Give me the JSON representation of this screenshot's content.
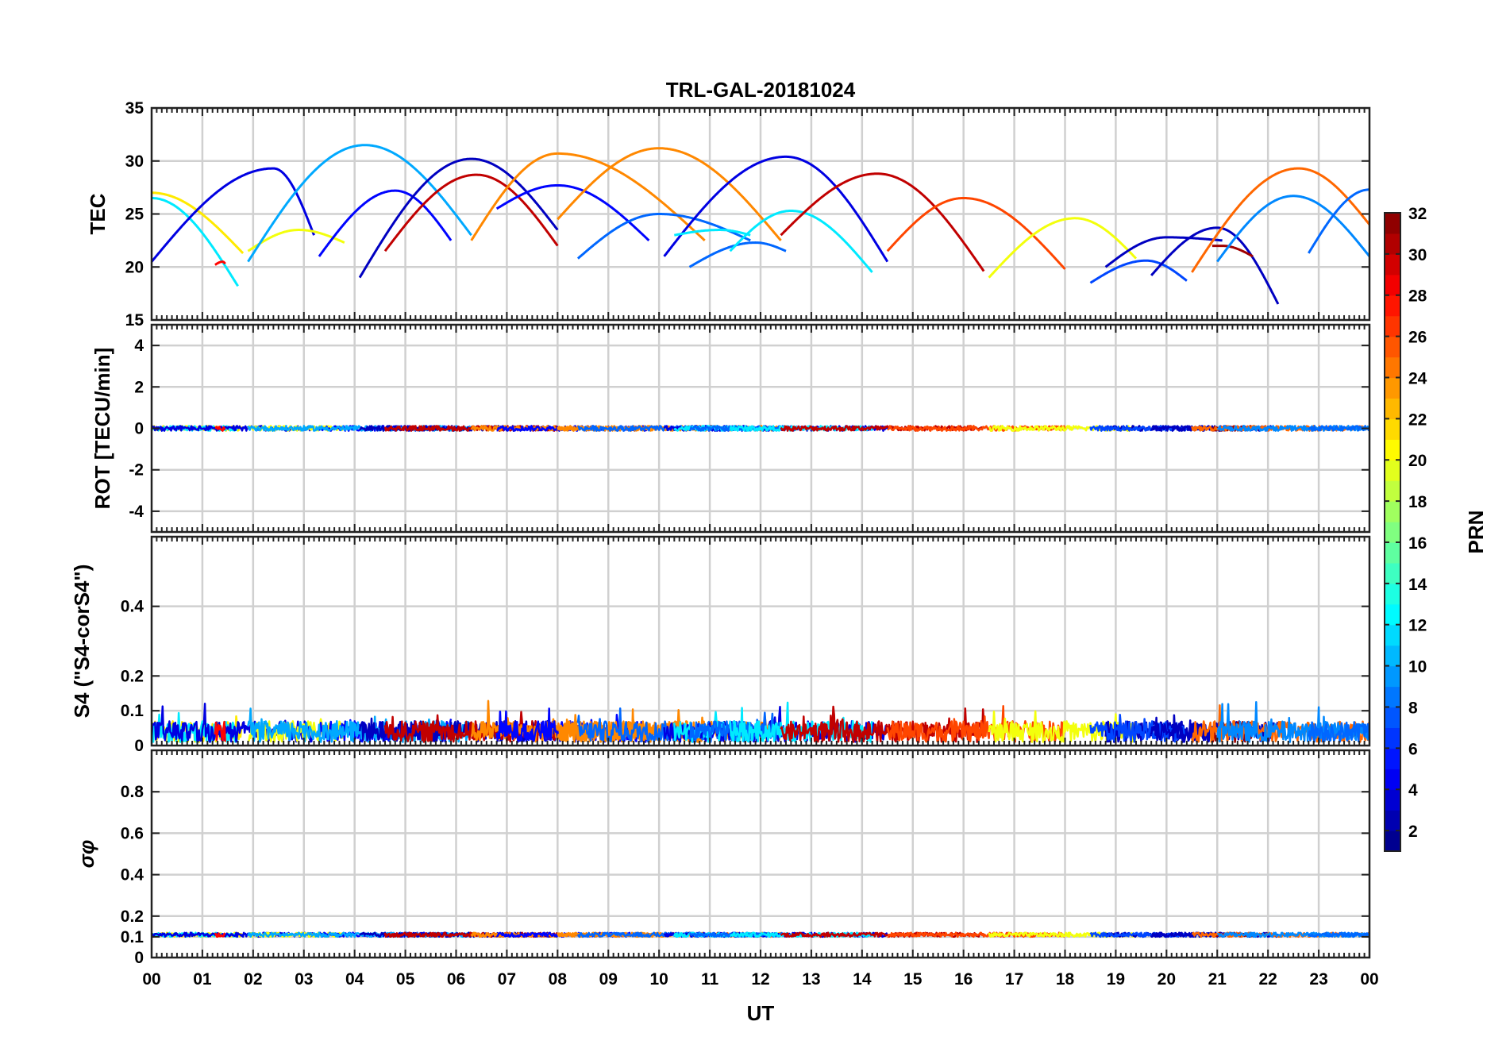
{
  "chart_data": {
    "type": "line",
    "title": "TRL-GAL-20181024",
    "xlabel": "UT",
    "x_ticks": [
      "00",
      "01",
      "02",
      "03",
      "04",
      "05",
      "06",
      "07",
      "08",
      "09",
      "10",
      "11",
      "12",
      "13",
      "14",
      "15",
      "16",
      "17",
      "18",
      "19",
      "20",
      "21",
      "22",
      "23",
      "00"
    ],
    "xlim": [
      0,
      24
    ],
    "colorbar": {
      "label": "PRN",
      "range": [
        1,
        32
      ],
      "ticks": [
        "2",
        "4",
        "6",
        "8",
        "10",
        "12",
        "14",
        "16",
        "18",
        "20",
        "22",
        "24",
        "26",
        "28",
        "30",
        "32"
      ]
    },
    "panels": [
      {
        "id": "tec",
        "ylabel": "TEC",
        "ylim": [
          15,
          35
        ],
        "y_ticks": [
          "15",
          "20",
          "25",
          "30",
          "35"
        ],
        "arcs": [
          {
            "prn": 21,
            "start": 0.0,
            "end": 1.8,
            "startv": 27.0,
            "peak": 27.0,
            "peakt": 0.0,
            "endv": 21.3
          },
          {
            "prn": 12,
            "start": 0.0,
            "end": 1.7,
            "startv": 26.5,
            "peak": 26.5,
            "peakt": 0.0,
            "endv": 18.2
          },
          {
            "prn": 4,
            "start": 0.0,
            "end": 3.2,
            "startv": 20.5,
            "peak": 29.3,
            "peakt": 2.4,
            "endv": 23.0
          },
          {
            "prn": 28,
            "start": 1.25,
            "end": 1.45,
            "startv": 20.2,
            "peak": 20.5,
            "peakt": 1.4,
            "endv": 20.3
          },
          {
            "prn": 20,
            "start": 1.9,
            "end": 3.8,
            "startv": 21.5,
            "peak": 23.5,
            "peakt": 2.9,
            "endv": 22.3
          },
          {
            "prn": 5,
            "start": 3.3,
            "end": 5.9,
            "startv": 21.0,
            "peak": 27.2,
            "peakt": 4.8,
            "endv": 22.5
          },
          {
            "prn": 10,
            "start": 1.9,
            "end": 6.3,
            "startv": 20.5,
            "peak": 31.5,
            "peakt": 4.2,
            "endv": 23.0
          },
          {
            "prn": 3,
            "start": 4.1,
            "end": 8.0,
            "startv": 19.0,
            "peak": 30.2,
            "peakt": 6.3,
            "endv": 23.5
          },
          {
            "prn": 30,
            "start": 4.6,
            "end": 8.0,
            "startv": 21.5,
            "peak": 28.7,
            "peakt": 6.4,
            "endv": 22.0
          },
          {
            "prn": 24,
            "start": 6.3,
            "end": 8.0,
            "startv": 22.5,
            "peak": 30.7,
            "peakt": 8.0,
            "endv": 30.7
          },
          {
            "prn": 5,
            "start": 6.8,
            "end": 9.8,
            "startv": 25.5,
            "peak": 27.7,
            "peakt": 8.0,
            "endv": 22.5
          },
          {
            "prn": 24,
            "start": 8.0,
            "end": 10.9,
            "startv": 30.7,
            "peak": 30.7,
            "peakt": 8.0,
            "endv": 22.5
          },
          {
            "prn": 24,
            "start": 8.0,
            "end": 12.4,
            "startv": 24.5,
            "peak": 31.2,
            "peakt": 10.0,
            "endv": 22.5
          },
          {
            "prn": 8,
            "start": 8.4,
            "end": 11.8,
            "startv": 20.8,
            "peak": 25.0,
            "peakt": 10.0,
            "endv": 22.5
          },
          {
            "prn": 4,
            "start": 10.1,
            "end": 14.5,
            "startv": 21.0,
            "peak": 30.4,
            "peakt": 12.5,
            "endv": 20.5
          },
          {
            "prn": 12,
            "start": 10.3,
            "end": 11.8,
            "startv": 23.0,
            "peak": 23.5,
            "peakt": 11.2,
            "endv": 23.0
          },
          {
            "prn": 8,
            "start": 10.6,
            "end": 12.5,
            "startv": 20.0,
            "peak": 22.3,
            "peakt": 11.9,
            "endv": 21.5
          },
          {
            "prn": 12,
            "start": 11.4,
            "end": 14.2,
            "startv": 21.5,
            "peak": 25.3,
            "peakt": 12.6,
            "endv": 19.5
          },
          {
            "prn": 30,
            "start": 12.4,
            "end": 16.4,
            "startv": 23.0,
            "peak": 28.8,
            "peakt": 14.3,
            "endv": 19.6
          },
          {
            "prn": 26,
            "start": 14.5,
            "end": 18.0,
            "startv": 21.5,
            "peak": 26.5,
            "peakt": 16.0,
            "endv": 19.8
          },
          {
            "prn": 20,
            "start": 16.5,
            "end": 19.4,
            "startv": 19.0,
            "peak": 24.6,
            "peakt": 18.2,
            "endv": 20.8
          },
          {
            "prn": 3,
            "start": 18.8,
            "end": 21.1,
            "startv": 20.0,
            "peak": 22.8,
            "peakt": 20.0,
            "endv": 22.5
          },
          {
            "prn": 7,
            "start": 18.5,
            "end": 20.4,
            "startv": 18.5,
            "peak": 20.6,
            "peakt": 19.6,
            "endv": 18.7
          },
          {
            "prn": 3,
            "start": 19.7,
            "end": 22.2,
            "startv": 19.2,
            "peak": 23.7,
            "peakt": 21.0,
            "endv": 16.5
          },
          {
            "prn": 31,
            "start": 20.9,
            "end": 21.7,
            "startv": 22.0,
            "peak": 22.0,
            "peakt": 21.1,
            "endv": 21.0
          },
          {
            "prn": 25,
            "start": 20.5,
            "end": 24.0,
            "startv": 19.5,
            "peak": 29.3,
            "peakt": 22.6,
            "endv": 24.0
          },
          {
            "prn": 9,
            "start": 21.0,
            "end": 24.0,
            "startv": 20.5,
            "peak": 26.7,
            "peakt": 22.5,
            "endv": 21.0
          },
          {
            "prn": 8,
            "start": 22.8,
            "end": 24.0,
            "startv": 21.3,
            "peak": 27.3,
            "peakt": 24.0,
            "endv": 27.3
          }
        ]
      },
      {
        "id": "rot",
        "ylabel": "ROT [TECU/min]",
        "ylim": [
          -5,
          5
        ],
        "y_ticks": [
          "-4",
          "-2",
          "0",
          "2",
          "4"
        ],
        "baseline": 0.0,
        "noise": 0.12
      },
      {
        "id": "s4",
        "ylabel": "S4 (\"S4-corS4\")",
        "ylim": [
          0,
          0.6
        ],
        "y_ticks": [
          "0",
          "0.1",
          "0.2",
          "0.4"
        ],
        "baseline": 0.04,
        "noise": 0.03
      },
      {
        "id": "sigma",
        "ylabel": "σφ",
        "ylim": [
          0,
          1.0
        ],
        "y_ticks": [
          "0",
          "0.1",
          "0.2",
          "0.4",
          "0.6",
          "0.8"
        ],
        "baseline": 0.11,
        "noise": 0.01
      }
    ]
  }
}
